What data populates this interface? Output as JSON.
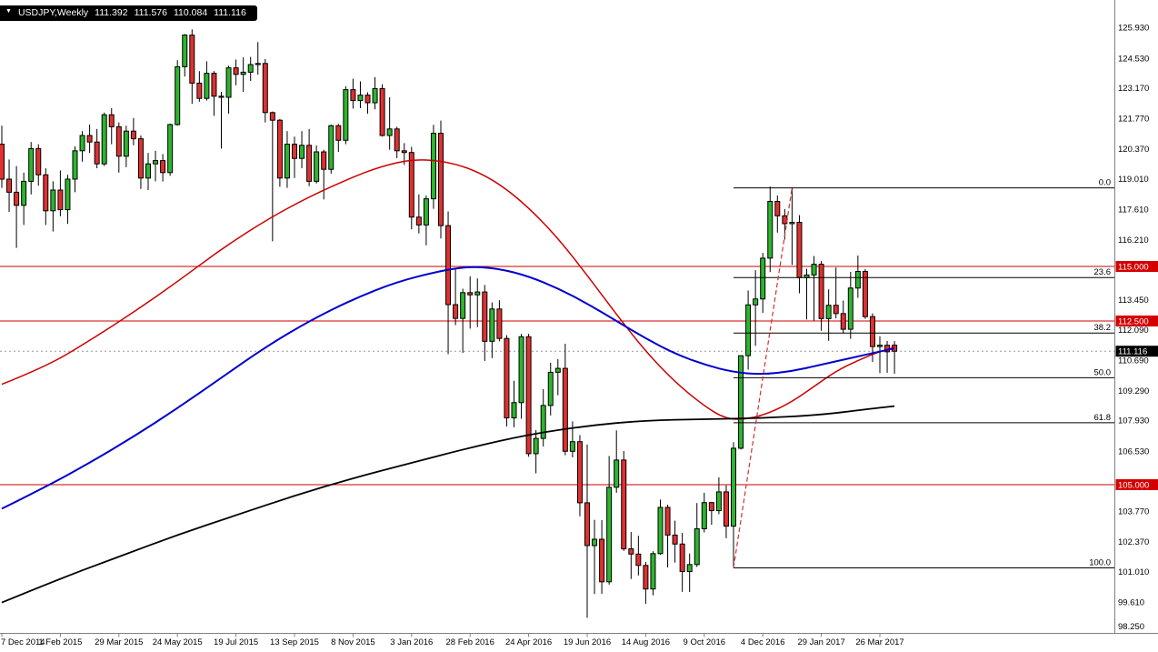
{
  "window": {
    "symbol_timeframe": "USDJPY,Weekly",
    "ohlc": {
      "open": "111.392",
      "high": "111.576",
      "low": "110.084",
      "close": "111.116"
    }
  },
  "chart_data": {
    "type": "candlestick",
    "symbol": "USDJPY",
    "timeframe": "Weekly",
    "ylim": [
      98.25,
      125.93
    ],
    "grid": false,
    "style": {
      "background": "#FFFFFF",
      "up_color": "#2DB52D",
      "down_color": "#E03030",
      "outline": "#000000",
      "ma_fast": "#CC0000",
      "ma_mid": "#0000CD",
      "ma_slow": "#000000",
      "hline": "#CC0000",
      "fib": "#000000",
      "trend": "#CC3333",
      "tag_red": "#D40000",
      "tag_black": "#000000",
      "axis_line": "#808080",
      "bid_line": "#999999"
    },
    "price_axis_ticks": [
      "125.930",
      "124.530",
      "123.170",
      "121.770",
      "120.370",
      "119.010",
      "117.610",
      "116.210",
      "113.450",
      "112.090",
      "110.690",
      "109.290",
      "107.930",
      "106.530",
      "103.770",
      "102.370",
      "101.010",
      "99.610",
      "98.250"
    ],
    "time_axis_labels": [
      {
        "text": "7 Dec 2014",
        "index": 0
      },
      {
        "text": "1 Feb 2015",
        "index": 8
      },
      {
        "text": "29 Mar 2015",
        "index": 16
      },
      {
        "text": "24 May 2015",
        "index": 24
      },
      {
        "text": "19 Jul 2015",
        "index": 32
      },
      {
        "text": "13 Sep 2015",
        "index": 40
      },
      {
        "text": "8 Nov 2015",
        "index": 48
      },
      {
        "text": "3 Jan 2016",
        "index": 56
      },
      {
        "text": "28 Feb 2016",
        "index": 64
      },
      {
        "text": "24 Apr 2016",
        "index": 72
      },
      {
        "text": "19 Jun 2016",
        "index": 80
      },
      {
        "text": "14 Aug 2016",
        "index": 88
      },
      {
        "text": "9 Oct 2016",
        "index": 96
      },
      {
        "text": "4 Dec 2016",
        "index": 104
      },
      {
        "text": "29 Jan 2017",
        "index": 112
      },
      {
        "text": "26 Mar 2017",
        "index": 120
      }
    ],
    "candles": [
      [
        120.6,
        121.45,
        118.6,
        119.0
      ],
      [
        119.0,
        119.9,
        117.5,
        118.4
      ],
      [
        118.4,
        119.6,
        115.85,
        117.8
      ],
      [
        117.8,
        119.3,
        116.9,
        118.9
      ],
      [
        118.9,
        120.7,
        118.3,
        120.4
      ],
      [
        120.4,
        120.6,
        118.7,
        119.2
      ],
      [
        119.2,
        119.5,
        116.9,
        117.55
      ],
      [
        117.55,
        118.9,
        116.6,
        118.5
      ],
      [
        118.5,
        119.4,
        117.3,
        117.6
      ],
      [
        117.6,
        119.2,
        116.95,
        119.0
      ],
      [
        119.0,
        120.5,
        118.4,
        120.3
      ],
      [
        120.3,
        121.2,
        119.8,
        121.0
      ],
      [
        121.0,
        121.5,
        120.2,
        120.7
      ],
      [
        120.7,
        121.3,
        119.5,
        119.7
      ],
      [
        119.7,
        122.05,
        119.6,
        121.95
      ],
      [
        121.95,
        122.25,
        120.6,
        121.4
      ],
      [
        121.4,
        121.6,
        119.3,
        120.05
      ],
      [
        120.05,
        121.45,
        119.55,
        121.2
      ],
      [
        121.2,
        121.8,
        120.55,
        120.85
      ],
      [
        120.85,
        121.0,
        118.55,
        119.05
      ],
      [
        119.05,
        120.2,
        118.5,
        119.7
      ],
      [
        119.7,
        120.3,
        118.9,
        119.85
      ],
      [
        119.85,
        120.15,
        118.89,
        119.3
      ],
      [
        119.3,
        121.55,
        119.15,
        121.5
      ],
      [
        121.5,
        124.45,
        121.45,
        124.15
      ],
      [
        124.15,
        125.65,
        123.7,
        125.6
      ],
      [
        125.6,
        125.86,
        122.45,
        123.4
      ],
      [
        123.4,
        123.95,
        122.55,
        122.7
      ],
      [
        122.7,
        124.4,
        122.6,
        123.85
      ],
      [
        123.85,
        123.95,
        121.9,
        122.8
      ],
      [
        122.8,
        123.0,
        120.4,
        122.75
      ],
      [
        122.75,
        124.2,
        122.0,
        124.1
      ],
      [
        124.1,
        124.48,
        123.3,
        123.8
      ],
      [
        123.8,
        124.58,
        123.0,
        123.9
      ],
      [
        123.9,
        124.6,
        123.5,
        124.25
      ],
      [
        124.25,
        125.28,
        123.79,
        124.3
      ],
      [
        124.3,
        124.5,
        121.6,
        122.05
      ],
      [
        122.05,
        122.1,
        116.15,
        121.7
      ],
      [
        121.7,
        121.76,
        118.65,
        119.05
      ],
      [
        119.05,
        121.2,
        118.6,
        120.6
      ],
      [
        120.6,
        120.95,
        119.05,
        119.95
      ],
      [
        119.95,
        121.2,
        119.5,
        120.55
      ],
      [
        120.55,
        121.3,
        118.68,
        118.9
      ],
      [
        118.9,
        120.55,
        118.8,
        120.25
      ],
      [
        120.25,
        120.35,
        118.07,
        119.45
      ],
      [
        119.45,
        121.5,
        119.25,
        121.45
      ],
      [
        121.45,
        121.53,
        120.25,
        120.78
      ],
      [
        120.78,
        123.26,
        120.6,
        123.1
      ],
      [
        123.1,
        123.6,
        122.23,
        122.6
      ],
      [
        122.6,
        123.48,
        122.25,
        122.85
      ],
      [
        122.85,
        122.98,
        122.0,
        122.5
      ],
      [
        122.5,
        123.67,
        122.2,
        123.15
      ],
      [
        123.15,
        123.35,
        120.95,
        121.0
      ],
      [
        121.0,
        122.75,
        120.35,
        121.3
      ],
      [
        121.3,
        121.4,
        119.96,
        120.3
      ],
      [
        120.3,
        120.65,
        119.65,
        120.22
      ],
      [
        120.22,
        120.48,
        116.7,
        117.26
      ],
      [
        117.26,
        118.3,
        116.51,
        116.9
      ],
      [
        116.9,
        118.25,
        115.97,
        118.1
      ],
      [
        118.1,
        121.49,
        117.64,
        121.1
      ],
      [
        121.1,
        121.68,
        116.28,
        116.87
      ],
      [
        116.87,
        117.52,
        110.98,
        113.25
      ],
      [
        113.25,
        114.87,
        112.31,
        112.62
      ],
      [
        112.62,
        113.98,
        111.04,
        113.8
      ],
      [
        113.8,
        114.55,
        112.15,
        113.7
      ],
      [
        113.7,
        114.45,
        112.22,
        113.83
      ],
      [
        113.83,
        114.15,
        110.67,
        111.57
      ],
      [
        111.57,
        113.35,
        110.8,
        113.05
      ],
      [
        113.05,
        113.45,
        111.57,
        111.7
      ],
      [
        111.7,
        111.85,
        107.67,
        108.06
      ],
      [
        108.06,
        109.76,
        107.63,
        108.76
      ],
      [
        108.76,
        111.91,
        108.02,
        111.78
      ],
      [
        111.78,
        111.91,
        106.28,
        106.42
      ],
      [
        106.42,
        107.5,
        105.52,
        107.12
      ],
      [
        107.12,
        109.38,
        106.75,
        108.63
      ],
      [
        108.63,
        110.59,
        108.17,
        110.15
      ],
      [
        110.15,
        110.75,
        109.1,
        110.33
      ],
      [
        110.33,
        111.46,
        106.35,
        106.53
      ],
      [
        106.53,
        107.9,
        106.25,
        106.97
      ],
      [
        106.97,
        107.27,
        103.55,
        104.17
      ],
      [
        104.17,
        106.84,
        98.9,
        102.21
      ],
      [
        102.21,
        103.39,
        99.99,
        102.5
      ],
      [
        102.5,
        103.38,
        100.0,
        100.55
      ],
      [
        100.55,
        106.32,
        100.42,
        104.88
      ],
      [
        104.88,
        107.49,
        104.63,
        106.13
      ],
      [
        106.13,
        106.54,
        101.97,
        102.06
      ],
      [
        102.06,
        102.83,
        100.68,
        101.82
      ],
      [
        101.82,
        102.66,
        100.84,
        101.3
      ],
      [
        101.3,
        101.46,
        99.54,
        100.22
      ],
      [
        100.22,
        101.95,
        99.93,
        101.84
      ],
      [
        101.84,
        104.32,
        101.79,
        103.96
      ],
      [
        103.96,
        104.08,
        101.21,
        102.69
      ],
      [
        102.69,
        103.35,
        101.43,
        102.28
      ],
      [
        102.28,
        102.79,
        100.09,
        101.02
      ],
      [
        101.02,
        101.84,
        100.08,
        101.34
      ],
      [
        101.34,
        104.16,
        101.23,
        102.98
      ],
      [
        102.98,
        104.63,
        102.81,
        104.18
      ],
      [
        104.18,
        104.21,
        103.16,
        103.81
      ],
      [
        103.81,
        105.34,
        103.65,
        104.67
      ],
      [
        104.67,
        104.97,
        102.55,
        103.1
      ],
      [
        103.1,
        106.95,
        101.19,
        106.67
      ],
      [
        106.67,
        110.92,
        106.61,
        110.91
      ],
      [
        110.91,
        113.9,
        110.27,
        113.24
      ],
      [
        113.24,
        114.83,
        111.36,
        113.51
      ],
      [
        113.51,
        115.62,
        112.87,
        115.38
      ],
      [
        115.38,
        118.66,
        114.74,
        117.98
      ],
      [
        117.98,
        118.25,
        116.55,
        117.32
      ],
      [
        117.32,
        117.63,
        116.23,
        116.96
      ],
      [
        116.96,
        118.6,
        115.07,
        117.02
      ],
      [
        117.02,
        117.35,
        113.77,
        114.49
      ],
      [
        114.49,
        114.89,
        112.57,
        114.61
      ],
      [
        114.61,
        115.48,
        112.52,
        115.1
      ],
      [
        115.1,
        115.25,
        112.05,
        112.61
      ],
      [
        112.61,
        113.95,
        111.59,
        113.22
      ],
      [
        113.22,
        114.95,
        112.62,
        112.84
      ],
      [
        112.84,
        113.44,
        111.92,
        112.12
      ],
      [
        112.12,
        114.75,
        111.68,
        114.01
      ],
      [
        114.01,
        115.5,
        113.56,
        114.77
      ],
      [
        114.77,
        114.88,
        112.6,
        112.7
      ],
      [
        112.7,
        112.85,
        110.62,
        111.33
      ],
      [
        111.33,
        111.8,
        110.11,
        111.39
      ],
      [
        111.39,
        111.59,
        110.13,
        111.09
      ],
      [
        111.392,
        111.576,
        110.084,
        111.116
      ]
    ],
    "moving_averages": [
      {
        "name": "sma-red",
        "color_key": "ma_fast",
        "width": 1.5,
        "points": [
          [
            0,
            109.6
          ],
          [
            6,
            110.4
          ],
          [
            12,
            111.6
          ],
          [
            18,
            112.9
          ],
          [
            24,
            114.3
          ],
          [
            30,
            115.8
          ],
          [
            36,
            117.1
          ],
          [
            42,
            118.2
          ],
          [
            48,
            119.1
          ],
          [
            52,
            119.6
          ],
          [
            56,
            119.9
          ],
          [
            60,
            119.85
          ],
          [
            64,
            119.5
          ],
          [
            68,
            118.8
          ],
          [
            72,
            117.7
          ],
          [
            76,
            116.3
          ],
          [
            80,
            114.6
          ],
          [
            84,
            112.8
          ],
          [
            88,
            111.1
          ],
          [
            92,
            109.7
          ],
          [
            96,
            108.6
          ],
          [
            99,
            108.0
          ],
          [
            102,
            108.0
          ],
          [
            105,
            108.3
          ],
          [
            108,
            108.8
          ],
          [
            111,
            109.5
          ],
          [
            114,
            110.2
          ],
          [
            117,
            110.7
          ],
          [
            120,
            111.1
          ],
          [
            122,
            111.3
          ]
        ]
      },
      {
        "name": "sma-blue",
        "color_key": "ma_mid",
        "width": 2,
        "points": [
          [
            0,
            103.9
          ],
          [
            6,
            104.9
          ],
          [
            12,
            106.0
          ],
          [
            18,
            107.2
          ],
          [
            24,
            108.5
          ],
          [
            30,
            109.9
          ],
          [
            36,
            111.3
          ],
          [
            42,
            112.5
          ],
          [
            48,
            113.5
          ],
          [
            54,
            114.3
          ],
          [
            60,
            114.8
          ],
          [
            64,
            115.0
          ],
          [
            68,
            114.9
          ],
          [
            72,
            114.55
          ],
          [
            76,
            114.0
          ],
          [
            80,
            113.3
          ],
          [
            84,
            112.5
          ],
          [
            88,
            111.7
          ],
          [
            92,
            111.0
          ],
          [
            96,
            110.5
          ],
          [
            100,
            110.15
          ],
          [
            104,
            110.05
          ],
          [
            108,
            110.2
          ],
          [
            112,
            110.5
          ],
          [
            116,
            110.8
          ],
          [
            120,
            111.1
          ],
          [
            122,
            111.25
          ]
        ]
      },
      {
        "name": "sma-black",
        "color_key": "ma_slow",
        "width": 1.8,
        "points": [
          [
            0,
            99.6
          ],
          [
            8,
            100.7
          ],
          [
            16,
            101.7
          ],
          [
            24,
            102.7
          ],
          [
            32,
            103.6
          ],
          [
            40,
            104.5
          ],
          [
            48,
            105.3
          ],
          [
            56,
            106.0
          ],
          [
            64,
            106.7
          ],
          [
            72,
            107.3
          ],
          [
            80,
            107.7
          ],
          [
            88,
            107.95
          ],
          [
            96,
            108.0
          ],
          [
            104,
            108.05
          ],
          [
            112,
            108.2
          ],
          [
            118,
            108.45
          ],
          [
            122,
            108.6
          ]
        ]
      }
    ],
    "horizontal_lines": [
      {
        "price": 115.0,
        "tag": "115.000"
      },
      {
        "price": 112.5,
        "tag": "112.500"
      },
      {
        "price": 105.0,
        "tag": "105.000"
      }
    ],
    "fibonacci": {
      "start_index": 100,
      "end_index": 108,
      "low": 101.19,
      "high": 118.6,
      "levels": [
        {
          "label": "0.0",
          "price": 118.6
        },
        {
          "label": "23.6",
          "price": 114.49
        },
        {
          "label": "38.2",
          "price": 111.95
        },
        {
          "label": "50.0",
          "price": 109.9
        },
        {
          "label": "61.8",
          "price": 107.84
        },
        {
          "label": "100.0",
          "price": 101.19
        }
      ]
    },
    "current_price": {
      "tag": "111.116",
      "price": 111.116
    }
  }
}
